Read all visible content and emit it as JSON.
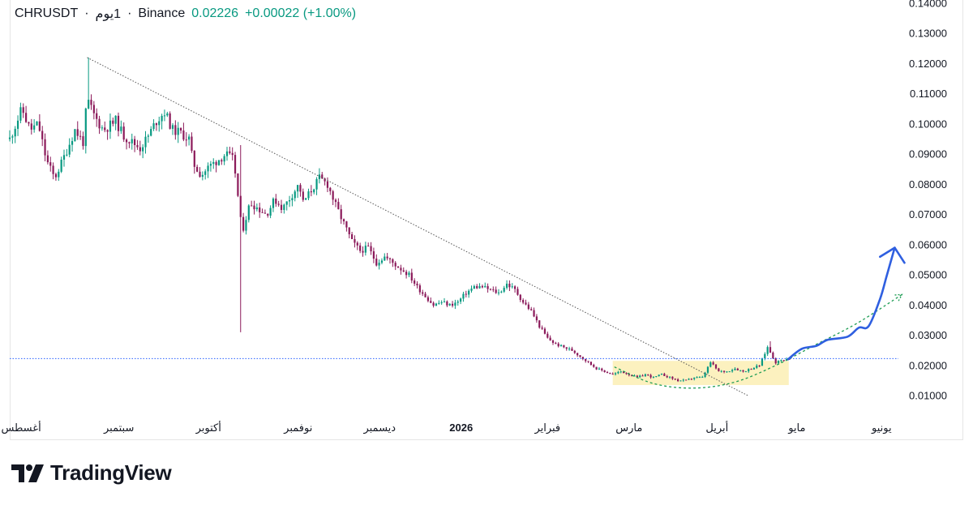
{
  "header": {
    "symbol": "CHRUSDT",
    "separator1": "·",
    "timeframe": "1يوم",
    "separator2": "·",
    "exchange": "Binance",
    "price": "0.02226",
    "change": "+0.00022 (+1.00%)"
  },
  "branding": {
    "name": "TradingView"
  },
  "colors": {
    "up": "#089981",
    "down": "#8b1a5a",
    "trendline": "#555555",
    "support_line": "#2962ff",
    "projection": "#2f5fe0",
    "dashed_curve": "#1f9d55",
    "accumulation_zone": "#fbefb4"
  },
  "chart_data": {
    "type": "candlestick",
    "symbol": "CHRUSDT",
    "interval": "1D",
    "ylim": [
      0.0,
      0.14
    ],
    "y_ticks": [
      "0.01000",
      "0.02000",
      "0.03000",
      "0.04000",
      "0.05000",
      "0.06000",
      "0.07000",
      "0.08000",
      "0.09000",
      "0.10000",
      "0.11000",
      "0.12000",
      "0.13000",
      "0.14000"
    ],
    "x_ticks": [
      {
        "label": "أغسطس",
        "t": 0.14,
        "bold": false
      },
      {
        "label": "سبتمبر",
        "t": 1.34,
        "bold": false
      },
      {
        "label": "أكتوبر",
        "t": 2.44,
        "bold": false
      },
      {
        "label": "نوفمبر",
        "t": 3.54,
        "bold": false
      },
      {
        "label": "ديسمبر",
        "t": 4.54,
        "bold": false
      },
      {
        "label": "2026",
        "t": 5.54,
        "bold": true
      },
      {
        "label": "فبراير",
        "t": 6.6,
        "bold": false
      },
      {
        "label": "مارس",
        "t": 7.6,
        "bold": false
      },
      {
        "label": "أبريل",
        "t": 8.68,
        "bold": false
      },
      {
        "label": "مايو",
        "t": 9.66,
        "bold": false
      },
      {
        "label": "يونيو",
        "t": 10.7,
        "bold": false
      }
    ],
    "close_path": [
      [
        0.0,
        0.095
      ],
      [
        0.15,
        0.105
      ],
      [
        0.25,
        0.098
      ],
      [
        0.35,
        0.1
      ],
      [
        0.45,
        0.088
      ],
      [
        0.55,
        0.082
      ],
      [
        0.65,
        0.088
      ],
      [
        0.8,
        0.098
      ],
      [
        0.9,
        0.094
      ],
      [
        0.95,
        0.108
      ],
      [
        1.05,
        0.102
      ],
      [
        1.15,
        0.098
      ],
      [
        1.3,
        0.101
      ],
      [
        1.4,
        0.096
      ],
      [
        1.5,
        0.094
      ],
      [
        1.6,
        0.092
      ],
      [
        1.7,
        0.096
      ],
      [
        1.8,
        0.101
      ],
      [
        1.9,
        0.104
      ],
      [
        2.0,
        0.098
      ],
      [
        2.1,
        0.097
      ],
      [
        2.2,
        0.095
      ],
      [
        2.25,
        0.087
      ],
      [
        2.35,
        0.083
      ],
      [
        2.45,
        0.086
      ],
      [
        2.55,
        0.088
      ],
      [
        2.65,
        0.09
      ],
      [
        2.75,
        0.088
      ],
      [
        2.85,
        0.064
      ],
      [
        2.95,
        0.074
      ],
      [
        3.05,
        0.072
      ],
      [
        3.15,
        0.07
      ],
      [
        3.25,
        0.075
      ],
      [
        3.35,
        0.072
      ],
      [
        3.45,
        0.076
      ],
      [
        3.55,
        0.08
      ],
      [
        3.6,
        0.074
      ],
      [
        3.7,
        0.078
      ],
      [
        3.8,
        0.082
      ],
      [
        3.9,
        0.08
      ],
      [
        4.0,
        0.073
      ],
      [
        4.1,
        0.067
      ],
      [
        4.2,
        0.061
      ],
      [
        4.3,
        0.058
      ],
      [
        4.4,
        0.059
      ],
      [
        4.5,
        0.054
      ],
      [
        4.6,
        0.056
      ],
      [
        4.7,
        0.054
      ],
      [
        4.8,
        0.052
      ],
      [
        4.9,
        0.05
      ],
      [
        5.0,
        0.046
      ],
      [
        5.1,
        0.043
      ],
      [
        5.2,
        0.04
      ],
      [
        5.3,
        0.041
      ],
      [
        5.4,
        0.04
      ],
      [
        5.5,
        0.041
      ],
      [
        5.6,
        0.044
      ],
      [
        5.7,
        0.046
      ],
      [
        5.8,
        0.046
      ],
      [
        5.9,
        0.045
      ],
      [
        6.0,
        0.044
      ],
      [
        6.1,
        0.047
      ],
      [
        6.2,
        0.045
      ],
      [
        6.3,
        0.041
      ],
      [
        6.4,
        0.038
      ],
      [
        6.5,
        0.033
      ],
      [
        6.6,
        0.029
      ],
      [
        6.7,
        0.027
      ],
      [
        6.8,
        0.026
      ],
      [
        6.9,
        0.025
      ],
      [
        7.0,
        0.023
      ],
      [
        7.1,
        0.021
      ],
      [
        7.2,
        0.019
      ],
      [
        7.3,
        0.018
      ],
      [
        7.4,
        0.017
      ],
      [
        7.5,
        0.018
      ],
      [
        7.6,
        0.017
      ],
      [
        7.7,
        0.016
      ],
      [
        7.8,
        0.017
      ],
      [
        7.9,
        0.016
      ],
      [
        8.0,
        0.017
      ],
      [
        8.1,
        0.016
      ],
      [
        8.2,
        0.015
      ],
      [
        8.3,
        0.015
      ],
      [
        8.4,
        0.016
      ],
      [
        8.5,
        0.016
      ],
      [
        8.6,
        0.021
      ],
      [
        8.7,
        0.018
      ],
      [
        8.8,
        0.018
      ],
      [
        8.9,
        0.019
      ],
      [
        9.0,
        0.018
      ],
      [
        9.1,
        0.019
      ],
      [
        9.2,
        0.02
      ],
      [
        9.3,
        0.026
      ],
      [
        9.4,
        0.021
      ],
      [
        9.5,
        0.022
      ],
      [
        9.57,
        0.0223
      ]
    ],
    "spikes": [
      {
        "t": 0.95,
        "high": 0.122
      },
      {
        "t": 2.82,
        "low": 0.031,
        "high": 0.093
      },
      {
        "t": 9.32,
        "high": 0.028
      }
    ],
    "annotations": {
      "downtrend_line": {
        "from": [
          0.95,
          0.122
        ],
        "to": [
          9.06,
          0.01
        ]
      },
      "horizontal_level": 0.02226,
      "accumulation_zone": {
        "t_range": [
          7.4,
          9.56
        ],
        "y_range": [
          0.0135,
          0.0215
        ]
      },
      "rounded_bottom_curve": [
        [
          7.42,
          0.0195
        ],
        [
          7.9,
          0.014
        ],
        [
          8.4,
          0.0125
        ],
        [
          8.9,
          0.0145
        ],
        [
          9.4,
          0.02
        ],
        [
          9.9,
          0.027
        ],
        [
          10.4,
          0.034
        ],
        [
          10.95,
          0.0435
        ]
      ],
      "projection_path": [
        [
          9.55,
          0.022
        ],
        [
          9.72,
          0.0255
        ],
        [
          9.9,
          0.0265
        ],
        [
          10.04,
          0.0285
        ],
        [
          10.28,
          0.0295
        ],
        [
          10.42,
          0.0325
        ],
        [
          10.54,
          0.033
        ],
        [
          10.68,
          0.042
        ],
        [
          10.76,
          0.0495
        ],
        [
          10.86,
          0.059
        ]
      ],
      "projection_arrowhead": [
        [
          10.68,
          0.056
        ],
        [
          10.86,
          0.059
        ],
        [
          10.98,
          0.054
        ]
      ]
    }
  }
}
